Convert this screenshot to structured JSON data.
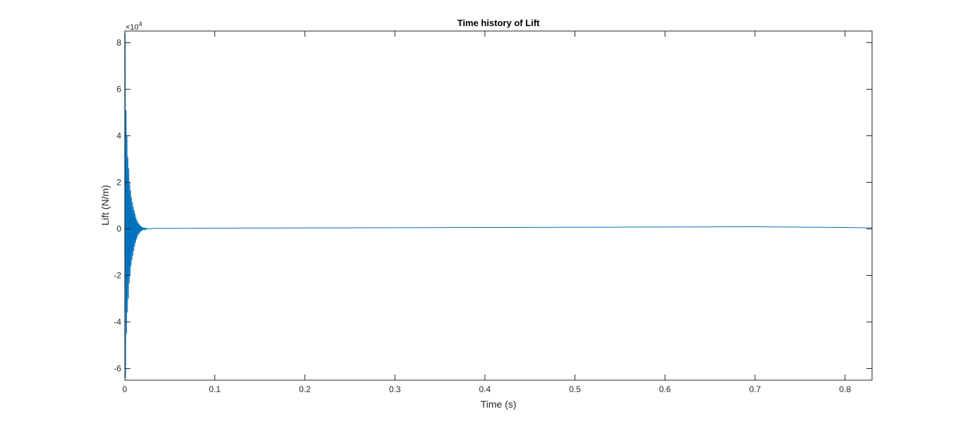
{
  "chart_data": {
    "type": "line",
    "title": "Time history of Lift",
    "xlabel": "Time (s)",
    "ylabel": "Lift (N/m)",
    "xlim": [
      0,
      0.83
    ],
    "ylim": [
      -65000,
      85000
    ],
    "y_exponent_base": "×10",
    "y_exponent_power": "4",
    "x_ticks": [
      0,
      0.1,
      0.2,
      0.3,
      0.4,
      0.5,
      0.6,
      0.7,
      0.8
    ],
    "x_tick_labels": [
      "0",
      "0.1",
      "0.2",
      "0.3",
      "0.4",
      "0.5",
      "0.6",
      "0.7",
      "0.8"
    ],
    "y_ticks": [
      -60000,
      -40000,
      -20000,
      0,
      20000,
      40000,
      60000,
      80000
    ],
    "y_tick_labels": [
      "-6",
      "-4",
      "-2",
      "0",
      "2",
      "4",
      "6",
      "8"
    ],
    "grid": false,
    "box": true,
    "series": [
      {
        "color": "#0072BD",
        "x": [
          0.0,
          0.0005,
          0.001,
          0.0015,
          0.002,
          0.0025,
          0.003,
          0.0035,
          0.004,
          0.0045,
          0.005,
          0.0055,
          0.006,
          0.0065,
          0.007,
          0.0075,
          0.008,
          0.0085,
          0.009,
          0.0095,
          0.01,
          0.0105,
          0.011,
          0.0115,
          0.012,
          0.0125,
          0.013,
          0.0135,
          0.014,
          0.0145,
          0.015,
          0.0155,
          0.016,
          0.0165,
          0.017,
          0.0175,
          0.018,
          0.0185,
          0.019,
          0.0195,
          0.02,
          0.0205,
          0.021,
          0.0215,
          0.022,
          0.0225,
          0.023,
          0.0235,
          0.024,
          0.0245,
          0.025,
          0.026,
          0.027,
          0.028,
          0.029,
          0.03,
          0.1,
          0.2,
          0.3,
          0.4,
          0.5,
          0.6,
          0.7,
          0.8,
          0.83
        ],
        "y": [
          0,
          84000,
          -64000,
          51000,
          -45000,
          40000,
          -36000,
          31000,
          -30000,
          26000,
          -23500,
          20000,
          -20000,
          16500,
          -16000,
          13500,
          -13500,
          11500,
          -11500,
          9500,
          -9500,
          8000,
          -7500,
          6500,
          -6000,
          5000,
          -4500,
          3800,
          -3500,
          3000,
          -2600,
          2300,
          -2000,
          1800,
          -1500,
          1400,
          -1100,
          1000,
          -800,
          700,
          -550,
          500,
          -400,
          350,
          -280,
          250,
          -200,
          180,
          -150,
          130,
          -100,
          80,
          -60,
          40,
          -20,
          200,
          300,
          400,
          500,
          600,
          700,
          800,
          900,
          600,
          400
        ]
      }
    ]
  }
}
